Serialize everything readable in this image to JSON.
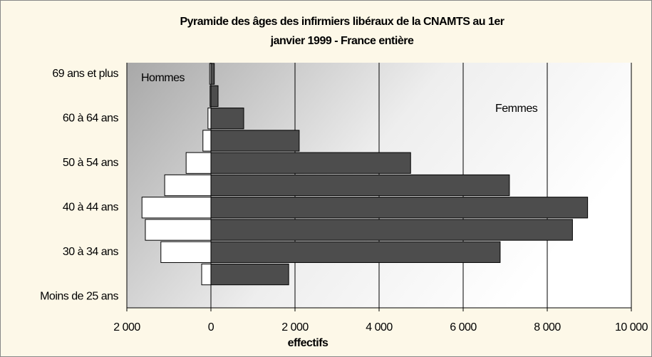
{
  "chart_data": {
    "type": "pyramid",
    "title": [
      "Pyramide des âges des infirmiers libéraux de la CNAMTS au 1er",
      "janvier 1999 - France entière"
    ],
    "x_label": "effectifs",
    "categories": [
      "Moins de 25 ans",
      null,
      "30 à 34 ans",
      null,
      "40 à 44 ans",
      null,
      "50 à 54 ans",
      null,
      "60 à 64 ans",
      null,
      "69 ans et plus"
    ],
    "series": [
      {
        "name": "Hommes",
        "color": "#ffffff",
        "values": [
          0,
          -220,
          -1190,
          -1560,
          -1640,
          -1100,
          -590,
          -190,
          -70,
          -20,
          -30
        ]
      },
      {
        "name": "Femmes",
        "color": "#4d4d4d",
        "values": [
          0,
          1850,
          6880,
          8600,
          8960,
          7100,
          4750,
          2100,
          780,
          170,
          80
        ]
      }
    ],
    "xlim": [
      -2000,
      10000
    ],
    "xticks": [
      {
        "value": -2000,
        "label": "2 000"
      },
      0,
      {
        "value": 2000,
        "label": "2 000"
      },
      {
        "value": 4000,
        "label": "4 000"
      },
      {
        "value": 6000,
        "label": "6 000"
      },
      {
        "value": 8000,
        "label": "8 000"
      },
      {
        "value": 10000,
        "label": "10 000"
      }
    ],
    "grid": true
  }
}
